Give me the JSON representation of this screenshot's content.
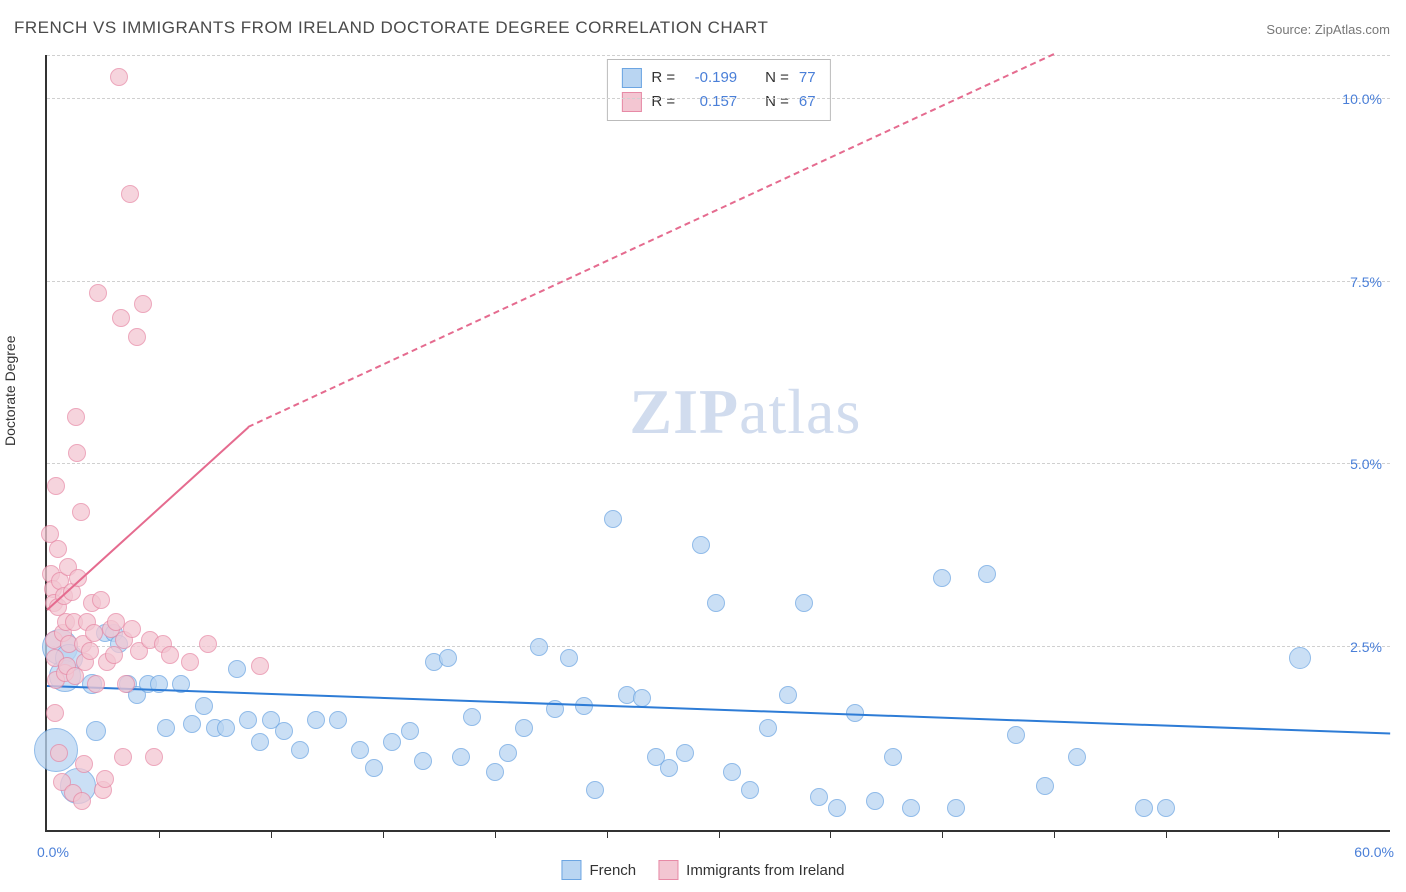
{
  "title": "FRENCH VS IMMIGRANTS FROM IRELAND DOCTORATE DEGREE CORRELATION CHART",
  "source_label": "Source:",
  "source_name": "ZipAtlas.com",
  "watermark": {
    "part1": "ZIP",
    "part2": "atlas"
  },
  "ylabel": "Doctorate Degree",
  "axes": {
    "xmin": 0,
    "xmax": 60,
    "xmin_label": "0.0%",
    "xmax_label": "60.0%",
    "ymin": 0,
    "ymax": 10.6,
    "yticks": [
      {
        "v": 2.5,
        "label": "2.5%"
      },
      {
        "v": 5.0,
        "label": "5.0%"
      },
      {
        "v": 7.5,
        "label": "7.5%"
      },
      {
        "v": 10.0,
        "label": "10.0%"
      }
    ],
    "xticks_minor": [
      5,
      10,
      15,
      20,
      25,
      30,
      35,
      40,
      45,
      50,
      55
    ]
  },
  "series": [
    {
      "id": "french",
      "label": "French",
      "fill": "#b9d5f2",
      "stroke": "#6ca5e2",
      "line_color": "#2e7cd6",
      "r_label": "R =",
      "r_value": "-0.199",
      "n_label": "N =",
      "n_value": "77",
      "trend": {
        "x1": 0,
        "y1": 1.95,
        "x2": 60,
        "y2": 1.3,
        "dashed": false,
        "width": 2.5
      },
      "point_radius": 9,
      "points": [
        [
          0.4,
          1.1,
          22
        ],
        [
          0.6,
          2.5,
          18
        ],
        [
          0.8,
          2.1,
          16
        ],
        [
          1.0,
          2.35,
          14
        ],
        [
          1.4,
          0.6,
          18
        ],
        [
          2.0,
          2.0,
          10
        ],
        [
          2.2,
          1.35,
          10
        ],
        [
          2.6,
          2.7,
          9
        ],
        [
          3.0,
          2.7,
          9
        ],
        [
          3.2,
          2.55,
          9
        ],
        [
          3.6,
          2.0,
          9
        ],
        [
          4.0,
          1.85,
          9
        ],
        [
          4.5,
          2.0,
          9
        ],
        [
          5.0,
          2.0,
          9
        ],
        [
          5.3,
          1.4,
          9
        ],
        [
          6.0,
          2.0,
          9
        ],
        [
          6.5,
          1.45,
          9
        ],
        [
          7.0,
          1.7,
          9
        ],
        [
          7.5,
          1.4,
          9
        ],
        [
          8.0,
          1.4,
          9
        ],
        [
          8.5,
          2.2,
          9
        ],
        [
          9.0,
          1.5,
          9
        ],
        [
          9.5,
          1.2,
          9
        ],
        [
          10.0,
          1.5,
          9
        ],
        [
          10.6,
          1.35,
          9
        ],
        [
          11.3,
          1.1,
          9
        ],
        [
          12.0,
          1.5,
          9
        ],
        [
          13.0,
          1.5,
          9
        ],
        [
          14.0,
          1.1,
          9
        ],
        [
          14.6,
          0.85,
          9
        ],
        [
          15.4,
          1.2,
          9
        ],
        [
          16.2,
          1.35,
          9
        ],
        [
          16.8,
          0.95,
          9
        ],
        [
          17.3,
          2.3,
          9
        ],
        [
          17.9,
          2.35,
          9
        ],
        [
          18.5,
          1.0,
          9
        ],
        [
          19.0,
          1.55,
          9
        ],
        [
          20.0,
          0.8,
          9
        ],
        [
          20.6,
          1.05,
          9
        ],
        [
          21.3,
          1.4,
          9
        ],
        [
          22.0,
          2.5,
          9
        ],
        [
          22.7,
          1.65,
          9
        ],
        [
          23.3,
          2.35,
          9
        ],
        [
          24.0,
          1.7,
          9
        ],
        [
          24.5,
          0.55,
          9
        ],
        [
          25.3,
          4.25,
          9
        ],
        [
          25.9,
          1.85,
          9
        ],
        [
          26.6,
          1.8,
          9
        ],
        [
          27.2,
          1.0,
          9
        ],
        [
          27.8,
          0.85,
          9
        ],
        [
          28.5,
          1.05,
          9
        ],
        [
          29.2,
          3.9,
          9
        ],
        [
          29.9,
          3.1,
          9
        ],
        [
          30.6,
          0.8,
          9
        ],
        [
          31.4,
          0.55,
          9
        ],
        [
          32.2,
          1.4,
          9
        ],
        [
          33.1,
          1.85,
          9
        ],
        [
          33.8,
          3.1,
          9
        ],
        [
          34.5,
          0.45,
          9
        ],
        [
          35.3,
          0.3,
          9
        ],
        [
          36.1,
          1.6,
          9
        ],
        [
          37.0,
          0.4,
          9
        ],
        [
          37.8,
          1.0,
          9
        ],
        [
          38.6,
          0.3,
          9
        ],
        [
          40.0,
          3.45,
          9
        ],
        [
          40.6,
          0.3,
          9
        ],
        [
          42.0,
          3.5,
          9
        ],
        [
          43.3,
          1.3,
          9
        ],
        [
          44.6,
          0.6,
          9
        ],
        [
          46.0,
          1.0,
          9
        ],
        [
          49.0,
          0.3,
          9
        ],
        [
          50.0,
          0.3,
          9
        ],
        [
          56.0,
          2.35,
          11
        ]
      ]
    },
    {
      "id": "ireland",
      "label": "Immigrants from Ireland",
      "fill": "#f3c6d2",
      "stroke": "#e78aa6",
      "line_color": "#e56b8f",
      "r_label": "R =",
      "r_value": "0.157",
      "n_label": "N =",
      "n_value": "67",
      "trend": {
        "x1": 0,
        "y1": 3.0,
        "x2": 9.0,
        "y2": 5.5,
        "dashed_after_x": 9.0,
        "dash_x2": 45,
        "dash_y2": 10.6,
        "width": 2
      },
      "point_radius": 9,
      "points": [
        [
          0.15,
          4.05,
          9
        ],
        [
          0.2,
          3.5,
          9
        ],
        [
          0.25,
          3.3,
          9
        ],
        [
          0.3,
          3.1,
          9
        ],
        [
          0.3,
          2.6,
          9
        ],
        [
          0.35,
          2.35,
          9
        ],
        [
          0.35,
          1.6,
          9
        ],
        [
          0.4,
          4.7,
          9
        ],
        [
          0.4,
          2.05,
          9
        ],
        [
          0.5,
          3.85,
          9
        ],
        [
          0.5,
          3.05,
          9
        ],
        [
          0.55,
          1.05,
          9
        ],
        [
          0.6,
          3.4,
          9
        ],
        [
          0.65,
          0.65,
          9
        ],
        [
          0.7,
          2.7,
          9
        ],
        [
          0.75,
          3.2,
          9
        ],
        [
          0.8,
          2.15,
          9
        ],
        [
          0.85,
          2.85,
          9
        ],
        [
          0.9,
          2.25,
          9
        ],
        [
          0.95,
          3.6,
          9
        ],
        [
          1.0,
          2.55,
          9
        ],
        [
          1.1,
          3.25,
          9
        ],
        [
          1.15,
          0.5,
          9
        ],
        [
          1.2,
          2.85,
          9
        ],
        [
          1.25,
          2.1,
          9
        ],
        [
          1.3,
          5.65,
          9
        ],
        [
          1.35,
          5.15,
          9
        ],
        [
          1.4,
          3.45,
          9
        ],
        [
          1.5,
          4.35,
          9
        ],
        [
          1.55,
          0.4,
          9
        ],
        [
          1.6,
          2.55,
          9
        ],
        [
          1.65,
          0.9,
          9
        ],
        [
          1.7,
          2.3,
          9
        ],
        [
          1.8,
          2.85,
          9
        ],
        [
          1.9,
          2.45,
          9
        ],
        [
          2.0,
          3.1,
          9
        ],
        [
          2.1,
          2.7,
          9
        ],
        [
          2.2,
          2.0,
          9
        ],
        [
          2.3,
          7.35,
          9
        ],
        [
          2.4,
          3.15,
          9
        ],
        [
          2.5,
          0.55,
          9
        ],
        [
          2.6,
          0.7,
          9
        ],
        [
          2.7,
          2.3,
          9
        ],
        [
          2.85,
          2.75,
          9
        ],
        [
          3.0,
          2.4,
          9
        ],
        [
          3.1,
          2.85,
          9
        ],
        [
          3.2,
          10.3,
          9
        ],
        [
          3.3,
          7.0,
          9
        ],
        [
          3.4,
          1.0,
          9
        ],
        [
          3.45,
          2.6,
          9
        ],
        [
          3.55,
          2.0,
          9
        ],
        [
          3.7,
          8.7,
          9
        ],
        [
          3.8,
          2.75,
          9
        ],
        [
          4.0,
          6.75,
          9
        ],
        [
          4.1,
          2.45,
          9
        ],
        [
          4.3,
          7.2,
          9
        ],
        [
          4.6,
          2.6,
          9
        ],
        [
          4.8,
          1.0,
          9
        ],
        [
          5.2,
          2.55,
          9
        ],
        [
          5.5,
          2.4,
          9
        ],
        [
          6.4,
          2.3,
          9
        ],
        [
          7.2,
          2.55,
          9
        ],
        [
          9.5,
          2.25,
          9
        ]
      ]
    }
  ],
  "legend": {
    "items": [
      {
        "series": "french"
      },
      {
        "series": "ireland"
      }
    ]
  }
}
